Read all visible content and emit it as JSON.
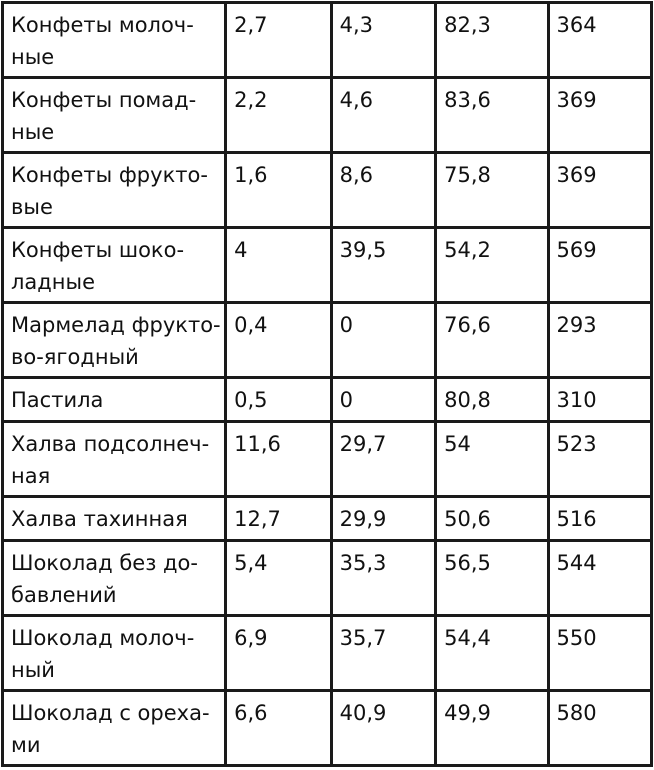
{
  "table": {
    "rows": [
      {
        "name": "Конфеты молоч-\nные",
        "values": [
          "2,7",
          "4,3",
          "82,3",
          "364"
        ]
      },
      {
        "name": "Конфеты помад-\nные",
        "values": [
          "2,2",
          "4,6",
          "83,6",
          "369"
        ]
      },
      {
        "name": "Конфеты фрукто-\nвые",
        "values": [
          "1,6",
          "8,6",
          "75,8",
          "369"
        ]
      },
      {
        "name": "Конфеты шоко-\nладные",
        "values": [
          "4",
          "39,5",
          "54,2",
          "569"
        ]
      },
      {
        "name": "Мармелад фрукто-\nво-ягодный",
        "values": [
          "0,4",
          "0",
          "76,6",
          "293"
        ]
      },
      {
        "name": "Пастила",
        "values": [
          "0,5",
          "0",
          "80,8",
          "310"
        ]
      },
      {
        "name": "Халва подсолнеч-\nная",
        "values": [
          "11,6",
          "29,7",
          "54",
          "523"
        ]
      },
      {
        "name": "Халва тахинная",
        "values": [
          "12,7",
          "29,9",
          "50,6",
          "516"
        ]
      },
      {
        "name": "Шоколад без до-\nбавлений",
        "values": [
          "5,4",
          "35,3",
          "56,5",
          "544"
        ]
      },
      {
        "name": "Шоколад молоч-\nный",
        "values": [
          "6,9",
          "35,7",
          "54,4",
          "550"
        ]
      },
      {
        "name": "Шоколад с ореха-\nми",
        "values": [
          "6,6",
          "40,9",
          "49,9",
          "580"
        ]
      }
    ]
  }
}
